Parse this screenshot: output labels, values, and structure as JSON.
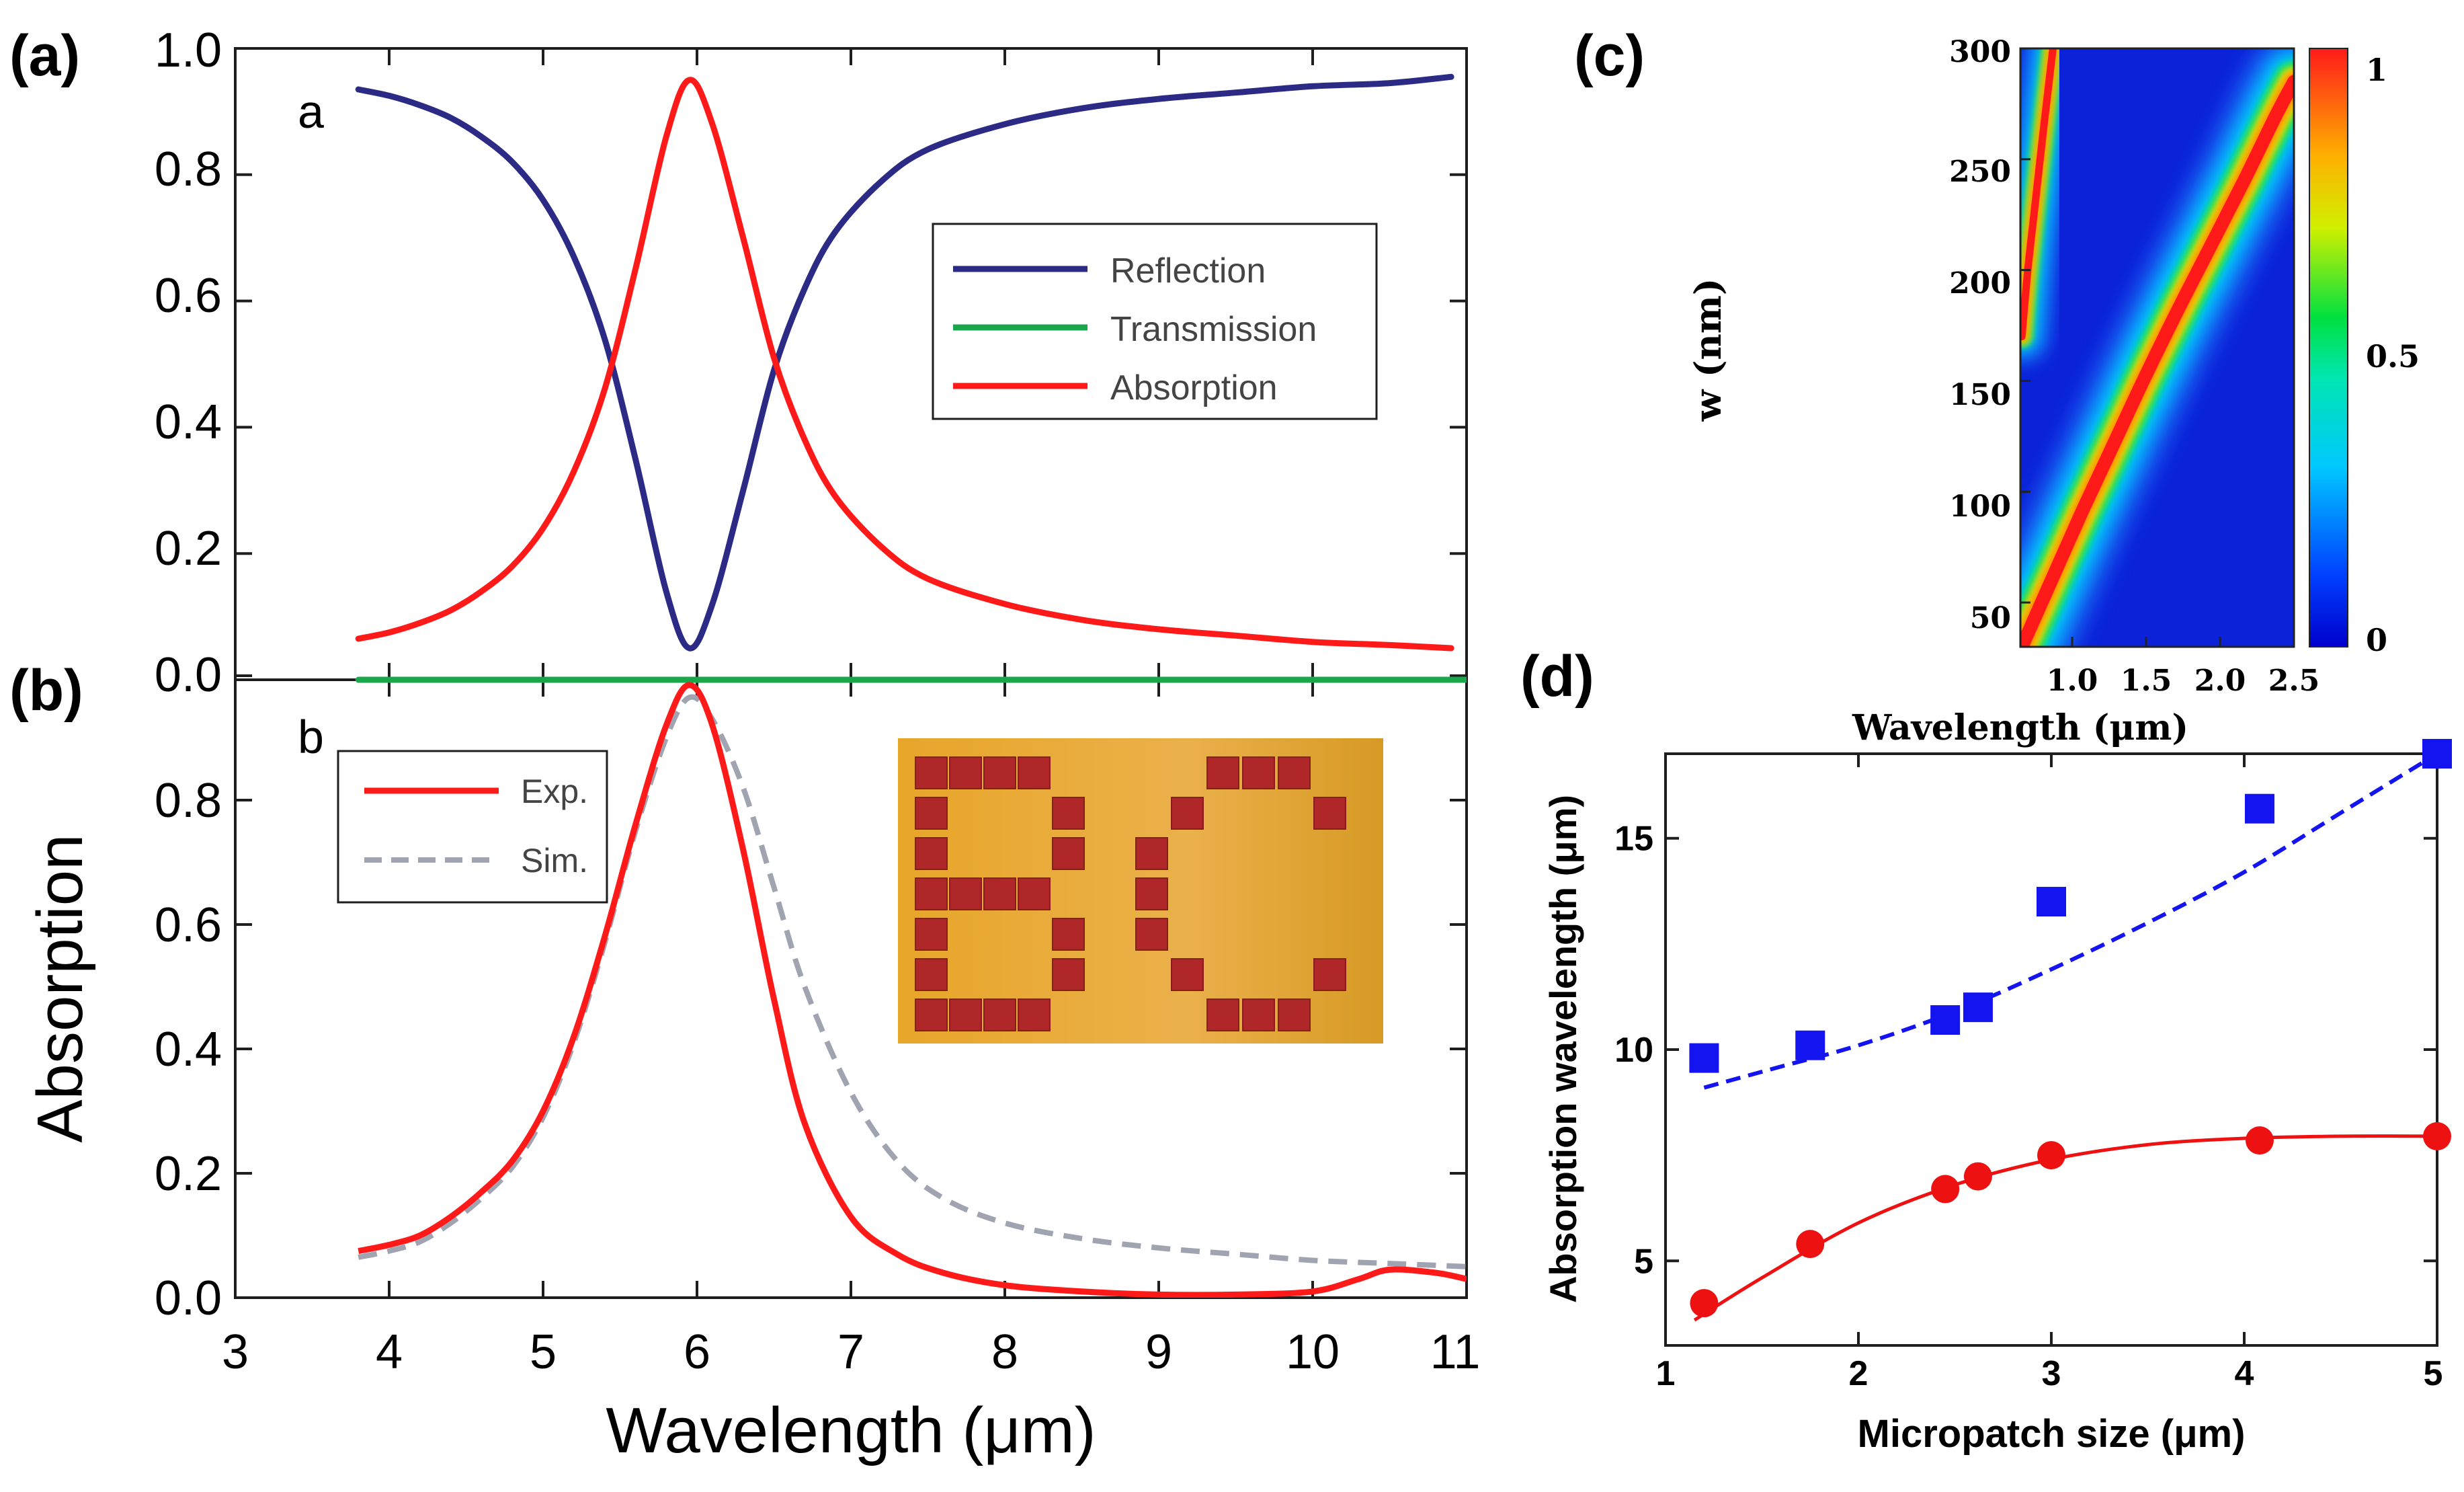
{
  "panels": {
    "a": {
      "label": "(a)",
      "inner_letter": "a"
    },
    "b": {
      "label": "(b)",
      "inner_letter": "b"
    },
    "c": {
      "label": "(c)"
    },
    "d": {
      "label": "(d)"
    }
  },
  "inset_letters": "BC",
  "colors": {
    "reflection": "#2b2b86",
    "transmission": "#1aa64a",
    "absorption": "#ff1a1a",
    "sim": "#a0a4b0",
    "blue_points": "#1414f0",
    "red_points": "#ee1111",
    "inset_bg": "#e3a12a",
    "inset_patch": "#b0272a"
  },
  "chart_data": [
    {
      "id": "a",
      "type": "line",
      "title": "",
      "xlabel": "",
      "ylabel": "",
      "xlim": [
        3,
        11
      ],
      "ylim": [
        0,
        1
      ],
      "yticks": [
        "0.0",
        "0.2",
        "0.4",
        "0.6",
        "0.8",
        "1.0"
      ],
      "legend": {
        "position": "right",
        "entries": [
          "Reflection",
          "Transmission",
          "Absorption"
        ]
      },
      "series": [
        {
          "name": "Reflection",
          "x": [
            3.8,
            4.0,
            4.2,
            4.4,
            4.6,
            4.8,
            5.0,
            5.2,
            5.4,
            5.6,
            5.8,
            5.95,
            6.1,
            6.3,
            6.5,
            6.7,
            6.9,
            7.2,
            7.5,
            8.0,
            8.5,
            9.0,
            9.5,
            10.0,
            10.5,
            10.9
          ],
          "y": [
            0.935,
            0.925,
            0.91,
            0.89,
            0.86,
            0.82,
            0.76,
            0.67,
            0.54,
            0.35,
            0.14,
            0.05,
            0.12,
            0.3,
            0.49,
            0.62,
            0.71,
            0.79,
            0.84,
            0.88,
            0.905,
            0.92,
            0.93,
            0.94,
            0.945,
            0.955
          ]
        },
        {
          "name": "Transmission",
          "x": [
            3.8,
            11.0
          ],
          "y": [
            0.0,
            0.0
          ]
        },
        {
          "name": "Absorption",
          "x": [
            3.8,
            4.0,
            4.2,
            4.4,
            4.6,
            4.8,
            5.0,
            5.2,
            5.4,
            5.6,
            5.8,
            5.95,
            6.1,
            6.3,
            6.5,
            6.7,
            6.9,
            7.2,
            7.5,
            8.0,
            8.5,
            9.0,
            9.5,
            10.0,
            10.5,
            10.9
          ],
          "y": [
            0.065,
            0.075,
            0.09,
            0.11,
            0.14,
            0.18,
            0.24,
            0.33,
            0.46,
            0.65,
            0.86,
            0.95,
            0.88,
            0.7,
            0.51,
            0.38,
            0.29,
            0.21,
            0.16,
            0.12,
            0.095,
            0.08,
            0.07,
            0.06,
            0.055,
            0.05
          ]
        }
      ]
    },
    {
      "id": "b",
      "type": "line",
      "title": "",
      "xlabel": "Wavelength (μm)",
      "ylabel": "Absorption",
      "xlim": [
        3,
        11
      ],
      "ylim": [
        0,
        1
      ],
      "xticks": [
        "3",
        "4",
        "5",
        "6",
        "7",
        "8",
        "9",
        "10",
        "11"
      ],
      "yticks": [
        "0.0",
        "0.2",
        "0.4",
        "0.6",
        "0.8"
      ],
      "legend": {
        "position": "top-left",
        "entries": [
          "Exp.",
          "Sim."
        ]
      },
      "series": [
        {
          "name": "Exp.",
          "x": [
            3.8,
            4.0,
            4.2,
            4.4,
            4.6,
            4.8,
            5.0,
            5.2,
            5.4,
            5.6,
            5.8,
            5.95,
            6.1,
            6.3,
            6.5,
            6.7,
            7.0,
            7.3,
            7.6,
            8.0,
            8.5,
            9.0,
            9.5,
            10.0,
            10.3,
            10.5,
            10.8,
            11.0
          ],
          "y": [
            0.075,
            0.085,
            0.1,
            0.13,
            0.17,
            0.22,
            0.3,
            0.42,
            0.58,
            0.76,
            0.92,
            0.985,
            0.92,
            0.72,
            0.48,
            0.28,
            0.13,
            0.07,
            0.04,
            0.02,
            0.01,
            0.005,
            0.005,
            0.01,
            0.03,
            0.045,
            0.04,
            0.03
          ]
        },
        {
          "name": "Sim.",
          "x": [
            3.8,
            4.0,
            4.2,
            4.4,
            4.6,
            4.8,
            5.0,
            5.2,
            5.4,
            5.6,
            5.8,
            5.95,
            6.1,
            6.3,
            6.5,
            6.7,
            7.0,
            7.3,
            7.6,
            8.0,
            8.5,
            9.0,
            9.5,
            10.0,
            10.5,
            11.0
          ],
          "y": [
            0.065,
            0.075,
            0.09,
            0.12,
            0.16,
            0.21,
            0.29,
            0.41,
            0.57,
            0.75,
            0.9,
            0.965,
            0.93,
            0.82,
            0.66,
            0.5,
            0.33,
            0.22,
            0.16,
            0.12,
            0.095,
            0.08,
            0.07,
            0.06,
            0.055,
            0.05
          ]
        }
      ]
    },
    {
      "id": "c",
      "type": "heatmap",
      "title": "",
      "xlabel": "Wavelength (μm)",
      "ylabel": "w (nm)",
      "xlim": [
        0.65,
        2.5
      ],
      "ylim": [
        30,
        300
      ],
      "xticks": [
        "1.0",
        "1.5",
        "2.0",
        "2.5"
      ],
      "yticks": [
        "50",
        "100",
        "150",
        "200",
        "250",
        "300"
      ],
      "colorbar": {
        "range": [
          0,
          1
        ],
        "ticks": [
          "0",
          "0.5",
          "1"
        ]
      },
      "ridges": [
        {
          "name": "mode-1",
          "w": [
            30,
            60,
            90,
            120,
            150,
            180,
            210,
            240,
            270,
            285
          ],
          "wavelength": [
            0.66,
            0.86,
            1.06,
            1.27,
            1.48,
            1.7,
            1.93,
            2.16,
            2.38,
            2.5
          ]
        },
        {
          "name": "mode-2",
          "w": [
            170,
            200,
            230,
            260,
            300
          ],
          "wavelength": [
            0.66,
            0.7,
            0.75,
            0.8,
            0.87
          ]
        }
      ]
    },
    {
      "id": "d",
      "type": "scatter",
      "title": "",
      "xlabel": "Micropatch size (μm)",
      "ylabel": "Absorption wavelength (μm)",
      "xlim": [
        1,
        5
      ],
      "ylim": [
        3,
        17
      ],
      "xticks": [
        "1",
        "2",
        "3",
        "4",
        "5"
      ],
      "yticks": [
        "5",
        "10",
        "15"
      ],
      "series": [
        {
          "name": "blue squares",
          "x": [
            1.2,
            1.75,
            2.45,
            2.62,
            3.0,
            4.08,
            5.0
          ],
          "y": [
            9.8,
            10.1,
            10.7,
            11.0,
            13.5,
            15.7,
            17.0
          ]
        },
        {
          "name": "blue fit",
          "x": [
            1.2,
            1.6,
            2.0,
            2.5,
            3.0,
            3.5,
            4.0,
            4.5,
            5.0
          ],
          "y": [
            9.1,
            9.6,
            10.1,
            10.9,
            11.9,
            13.0,
            14.2,
            15.6,
            17.0
          ]
        },
        {
          "name": "red circles",
          "x": [
            1.2,
            1.75,
            2.45,
            2.62,
            3.0,
            4.08,
            5.0
          ],
          "y": [
            4.0,
            5.4,
            6.7,
            7.0,
            7.5,
            7.85,
            7.95
          ]
        },
        {
          "name": "red fit",
          "x": [
            1.15,
            1.5,
            2.0,
            2.5,
            3.0,
            3.5,
            4.0,
            4.5,
            5.0
          ],
          "y": [
            3.6,
            4.6,
            5.9,
            6.8,
            7.4,
            7.75,
            7.9,
            7.95,
            7.95
          ]
        }
      ]
    }
  ]
}
